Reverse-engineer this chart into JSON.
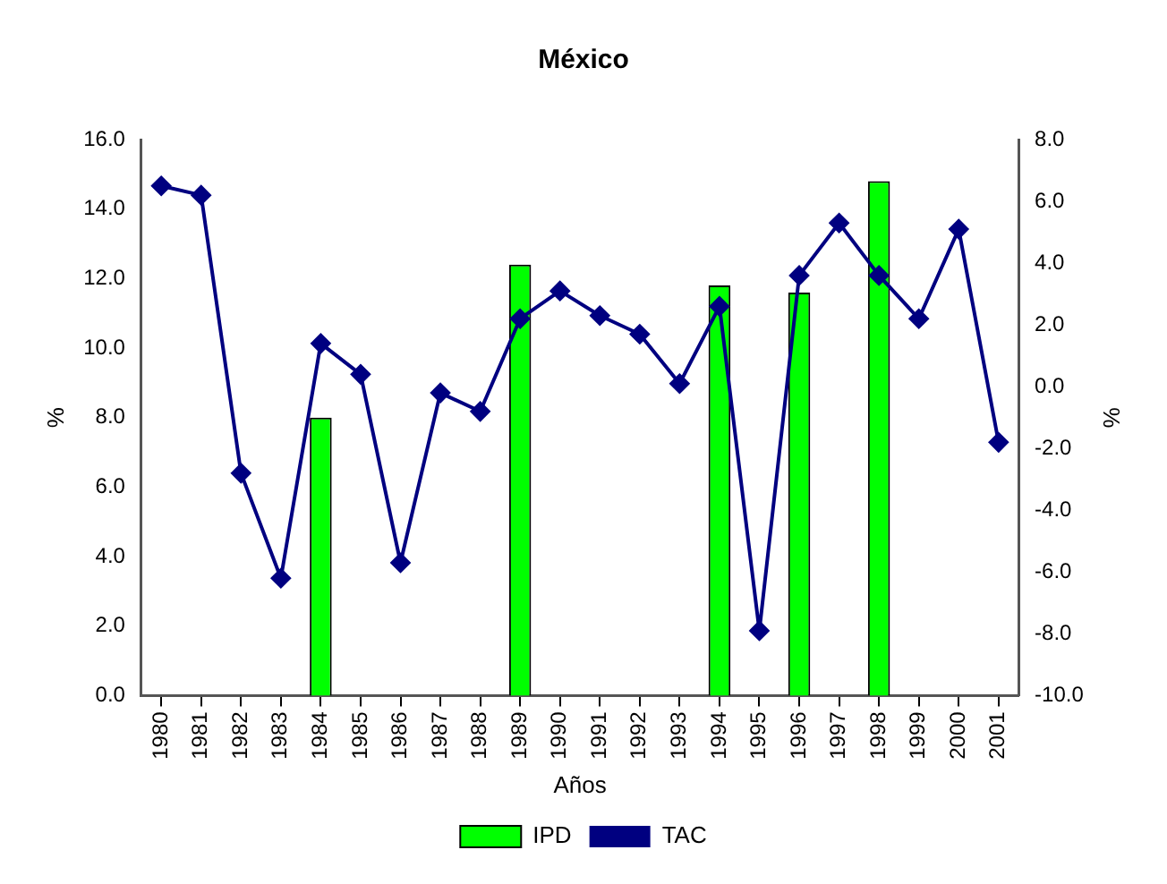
{
  "chart_data": {
    "type": "bar",
    "title": "México",
    "xlabel": "Años",
    "ylabel": "%",
    "y2label": "%",
    "categories": [
      "1980",
      "1981",
      "1982",
      "1983",
      "1984",
      "1985",
      "1986",
      "1987",
      "1988",
      "1989",
      "1990",
      "1991",
      "1992",
      "1993",
      "1994",
      "1995",
      "1996",
      "1997",
      "1998",
      "1999",
      "2000",
      "2001"
    ],
    "series": [
      {
        "name": "IPD",
        "color": "#00ff00",
        "values": [
          null,
          null,
          null,
          null,
          8.0,
          null,
          null,
          null,
          null,
          12.4,
          null,
          null,
          null,
          null,
          11.8,
          null,
          11.6,
          null,
          14.8,
          null,
          null,
          null
        ]
      },
      {
        "name": "TAC",
        "type": "line",
        "axis": "y2",
        "color": "#000080",
        "marker": "diamond",
        "values": [
          6.5,
          6.2,
          -2.8,
          -6.2,
          1.4,
          0.4,
          -5.7,
          -0.2,
          -0.8,
          2.2,
          3.1,
          2.3,
          1.7,
          0.1,
          2.6,
          -7.9,
          3.6,
          5.3,
          3.6,
          2.2,
          5.1,
          -1.8
        ]
      }
    ],
    "ylim": [
      0,
      16
    ],
    "yticks": [
      {
        "value": 0,
        "label": "0.0"
      },
      {
        "value": 2,
        "label": "2.0"
      },
      {
        "value": 4,
        "label": "4.0"
      },
      {
        "value": 6,
        "label": "6.0"
      },
      {
        "value": 8,
        "label": "8.0"
      },
      {
        "value": 10,
        "label": "10.0"
      },
      {
        "value": 12,
        "label": "12.0"
      },
      {
        "value": 14,
        "label": "14.0"
      },
      {
        "value": 16,
        "label": "16.0"
      }
    ],
    "y2lim": [
      -10,
      8
    ],
    "y2ticks": [
      {
        "value": -10,
        "label": "-10.0"
      },
      {
        "value": -8,
        "label": "-8.0"
      },
      {
        "value": -6,
        "label": "-6.0"
      },
      {
        "value": -4,
        "label": "-4.0"
      },
      {
        "value": -2,
        "label": "-2.0"
      },
      {
        "value": 0,
        "label": "0.0"
      },
      {
        "value": 2,
        "label": "2.0"
      },
      {
        "value": 4,
        "label": "4.0"
      },
      {
        "value": 6,
        "label": "6.0"
      },
      {
        "value": 8,
        "label": "8.0"
      }
    ],
    "grid": false,
    "legend": "bottom"
  }
}
